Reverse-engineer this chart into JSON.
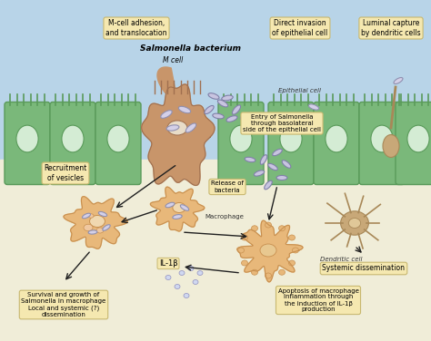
{
  "bg_top_color": "#b8d4e8",
  "bg_bottom_color": "#f0edd8",
  "cell_color": "#7ab87a",
  "cell_outline": "#5a9a5a",
  "nucleus_color": "#d4ecd4",
  "m_cell_color": "#c8956a",
  "m_cell_outline": "#a07050",
  "macrophage_color": "#e8b87a",
  "macrophage_outline": "#c89050",
  "dendritic_color": "#c8a878",
  "dendritic_outline": "#a88858",
  "bacteria_fill": "#d4d0e8",
  "bacteria_outline": "#9090b0",
  "box_color": "#f5e8b0",
  "box_edge": "#c8b870",
  "arrow_color": "#202020",
  "title": "Salmonella bacterium",
  "label_mcell": "M cell",
  "label_epithelial": "Epithelial cell",
  "label_macrophage": "Macrophage",
  "label_dendritic": "Dendritic cell",
  "box1": "M-cell adhesion,\nand translocation",
  "box2": "Direct invasion\nof epithelial cell",
  "box3": "Luminal capture\nby dendritic cells",
  "box4": "Entry of Salmonella\nthrough basolateral\nside of the epithelial cell",
  "box5": "Release of\nbacteria",
  "box6": "Systemic dissemination",
  "box7": "Recruitment\nof vesicles",
  "box8": "IL-1β",
  "box9": "Apoptosis of macrophage\nInflammation through\nthe induction of IL-1β\nproduction",
  "box10": "Survival and growth of\nSalmonella in macrophage\nLocal and systemic (?)\ndissemination"
}
